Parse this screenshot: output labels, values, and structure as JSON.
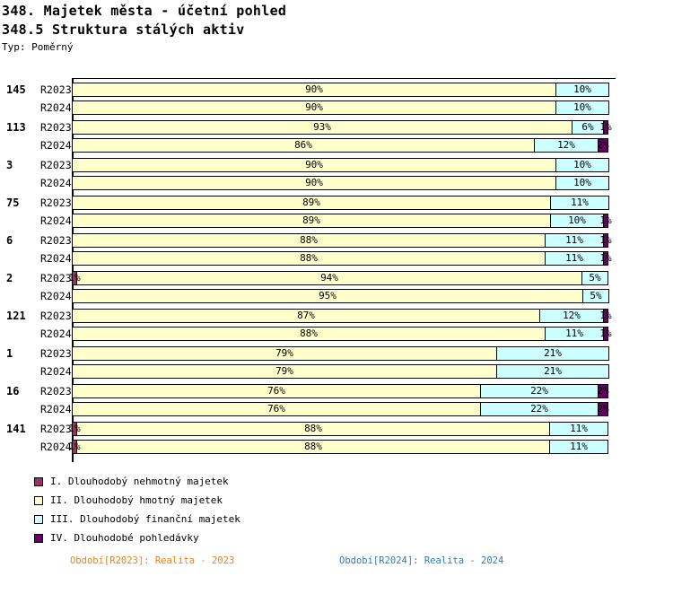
{
  "header": {
    "title": "348. Majetek města - účetní pohled",
    "subtitle": "348.5 Struktura stálých aktiv",
    "type_label": "Typ: Poměrný"
  },
  "footer": {
    "period_2023": "Období[R2023]: Realita - 2023",
    "period_2024": "Období[R2024]: Realita - 2024",
    "period_2023_color": "#E8821E",
    "period_2024_color": "#2E7CB8"
  },
  "chart_data": {
    "type": "bar",
    "orientation": "horizontal",
    "stacked": true,
    "unit": "%",
    "xlim": [
      0,
      100
    ],
    "grid": false,
    "legend_position": "bottom-left",
    "legend": [
      {
        "key": "I",
        "label": "I. Dlouhodobý nehmotný majetek",
        "color": "#993366"
      },
      {
        "key": "II",
        "label": "II. Dlouhodobý hmotný majetek",
        "color": "#FFFFCC"
      },
      {
        "key": "III",
        "label": "III. Dlouhodobý finanční majetek",
        "color": "#CCFFFF"
      },
      {
        "key": "IV",
        "label": "IV. Dlouhodobé pohledávky",
        "color": "#660066"
      }
    ],
    "groups": [
      {
        "label": "145",
        "rows": [
          {
            "label": "R2023",
            "segments": [
              {
                "key": "II",
                "value": 90
              },
              {
                "key": "III",
                "value": 10
              }
            ]
          },
          {
            "label": "R2024",
            "segments": [
              {
                "key": "II",
                "value": 90
              },
              {
                "key": "III",
                "value": 10
              }
            ]
          }
        ]
      },
      {
        "label": "113",
        "rows": [
          {
            "label": "R2023",
            "segments": [
              {
                "key": "II",
                "value": 93
              },
              {
                "key": "III",
                "value": 6
              },
              {
                "key": "IV",
                "value": 1
              }
            ]
          },
          {
            "label": "R2024",
            "segments": [
              {
                "key": "II",
                "value": 86
              },
              {
                "key": "III",
                "value": 12
              },
              {
                "key": "IV",
                "value": 2
              }
            ]
          }
        ]
      },
      {
        "label": "3",
        "rows": [
          {
            "label": "R2023",
            "segments": [
              {
                "key": "II",
                "value": 90
              },
              {
                "key": "III",
                "value": 10
              }
            ]
          },
          {
            "label": "R2024",
            "segments": [
              {
                "key": "II",
                "value": 90
              },
              {
                "key": "III",
                "value": 10
              }
            ]
          }
        ]
      },
      {
        "label": "75",
        "rows": [
          {
            "label": "R2023",
            "segments": [
              {
                "key": "II",
                "value": 89
              },
              {
                "key": "III",
                "value": 11
              }
            ]
          },
          {
            "label": "R2024",
            "segments": [
              {
                "key": "II",
                "value": 89
              },
              {
                "key": "III",
                "value": 10
              },
              {
                "key": "IV",
                "value": 1
              }
            ]
          }
        ]
      },
      {
        "label": "6",
        "rows": [
          {
            "label": "R2023",
            "segments": [
              {
                "key": "II",
                "value": 88
              },
              {
                "key": "III",
                "value": 11
              },
              {
                "key": "IV",
                "value": 1
              }
            ]
          },
          {
            "label": "R2024",
            "segments": [
              {
                "key": "II",
                "value": 88
              },
              {
                "key": "III",
                "value": 11
              },
              {
                "key": "IV",
                "value": 1
              }
            ]
          }
        ]
      },
      {
        "label": "2",
        "rows": [
          {
            "label": "R2023",
            "segments": [
              {
                "key": "I",
                "value": 1
              },
              {
                "key": "II",
                "value": 94
              },
              {
                "key": "III",
                "value": 5
              }
            ]
          },
          {
            "label": "R2024",
            "segments": [
              {
                "key": "II",
                "value": 95
              },
              {
                "key": "III",
                "value": 5
              }
            ]
          }
        ]
      },
      {
        "label": "121",
        "rows": [
          {
            "label": "R2023",
            "segments": [
              {
                "key": "II",
                "value": 87
              },
              {
                "key": "III",
                "value": 12
              },
              {
                "key": "IV",
                "value": 1
              }
            ]
          },
          {
            "label": "R2024",
            "segments": [
              {
                "key": "II",
                "value": 88
              },
              {
                "key": "III",
                "value": 11
              },
              {
                "key": "IV",
                "value": 1
              }
            ]
          }
        ]
      },
      {
        "label": "1",
        "rows": [
          {
            "label": "R2023",
            "segments": [
              {
                "key": "II",
                "value": 79
              },
              {
                "key": "III",
                "value": 21
              }
            ]
          },
          {
            "label": "R2024",
            "segments": [
              {
                "key": "II",
                "value": 79
              },
              {
                "key": "III",
                "value": 21
              }
            ]
          }
        ]
      },
      {
        "label": "16",
        "rows": [
          {
            "label": "R2023",
            "segments": [
              {
                "key": "II",
                "value": 76
              },
              {
                "key": "III",
                "value": 22
              },
              {
                "key": "IV",
                "value": 2
              }
            ]
          },
          {
            "label": "R2024",
            "segments": [
              {
                "key": "II",
                "value": 76
              },
              {
                "key": "III",
                "value": 22
              },
              {
                "key": "IV",
                "value": 2
              }
            ]
          }
        ]
      },
      {
        "label": "141",
        "rows": [
          {
            "label": "R2023",
            "segments": [
              {
                "key": "I",
                "value": 1
              },
              {
                "key": "II",
                "value": 88
              },
              {
                "key": "III",
                "value": 11
              }
            ]
          },
          {
            "label": "R2024",
            "segments": [
              {
                "key": "I",
                "value": 1
              },
              {
                "key": "II",
                "value": 88
              },
              {
                "key": "III",
                "value": 11
              }
            ]
          }
        ]
      }
    ]
  }
}
